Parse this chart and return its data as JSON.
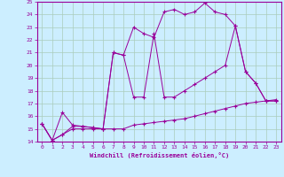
{
  "xlabel": "Windchill (Refroidissement éolien,°C)",
  "bg_color": "#cceeff",
  "grid_color": "#aaccbb",
  "line_color": "#990099",
  "xlim": [
    -0.5,
    23.5
  ],
  "ylim": [
    14,
    25
  ],
  "xticks": [
    0,
    1,
    2,
    3,
    4,
    5,
    6,
    7,
    8,
    9,
    10,
    11,
    12,
    13,
    14,
    15,
    16,
    17,
    18,
    19,
    20,
    21,
    22,
    23
  ],
  "yticks": [
    14,
    15,
    16,
    17,
    18,
    19,
    20,
    21,
    22,
    23,
    24,
    25
  ],
  "line1_x": [
    0,
    1,
    2,
    3,
    4,
    5,
    6,
    7,
    8,
    9,
    10,
    11,
    12,
    13,
    14,
    15,
    16,
    17,
    18,
    19,
    20,
    21,
    22,
    23
  ],
  "line1_y": [
    15.4,
    14.1,
    14.55,
    15.0,
    15.0,
    15.0,
    15.0,
    15.0,
    15.0,
    15.3,
    15.4,
    15.5,
    15.6,
    15.7,
    15.8,
    16.0,
    16.2,
    16.4,
    16.6,
    16.8,
    17.0,
    17.1,
    17.2,
    17.3
  ],
  "line2_x": [
    0,
    1,
    2,
    3,
    4,
    5,
    6,
    7,
    8,
    9,
    10,
    11,
    12,
    13,
    14,
    15,
    16,
    17,
    18,
    19,
    20,
    21,
    22,
    23
  ],
  "line2_y": [
    15.4,
    14.1,
    16.3,
    15.3,
    15.2,
    15.1,
    15.0,
    21.0,
    20.8,
    17.5,
    17.5,
    22.5,
    17.5,
    17.5,
    18.0,
    18.5,
    19.0,
    19.5,
    20.0,
    23.1,
    19.5,
    18.6,
    17.2,
    17.2
  ],
  "line3_x": [
    0,
    1,
    2,
    3,
    4,
    5,
    6,
    7,
    8,
    9,
    10,
    11,
    12,
    13,
    14,
    15,
    16,
    17,
    18,
    19,
    20,
    21,
    22,
    23
  ],
  "line3_y": [
    15.4,
    14.1,
    14.55,
    15.2,
    15.2,
    15.1,
    15.0,
    21.0,
    20.8,
    23.0,
    22.5,
    22.2,
    24.2,
    24.4,
    24.0,
    24.2,
    24.9,
    24.2,
    24.0,
    23.1,
    19.5,
    18.6,
    17.2,
    17.2
  ]
}
